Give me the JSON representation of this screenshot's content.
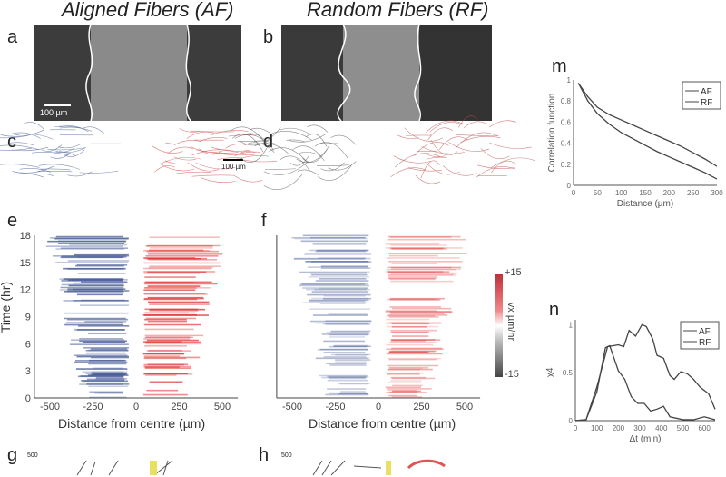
{
  "titles": {
    "af": "Aligned Fibers (AF)",
    "rf": "Random Fibers (RF)"
  },
  "panels": {
    "a": "a",
    "b": "b",
    "c": "c",
    "d": "d",
    "e": "e",
    "f": "f",
    "g": "g",
    "h": "h",
    "m": "m",
    "n": "n"
  },
  "scale_bars": {
    "a": "100 µm",
    "c": "100 µm"
  },
  "kymograph": {
    "ylabel": "Time (hr)",
    "xlabel": "Distance from centre (µm)",
    "yticks": [
      "0",
      "3",
      "6",
      "9",
      "12",
      "15",
      "18"
    ],
    "xticks": [
      "-500",
      "-250",
      "0",
      "250",
      "500"
    ]
  },
  "colorbar": {
    "max": "+15",
    "min": "-15",
    "label": "vx µm/hr",
    "colors": {
      "pos": "#e03a3a",
      "neg": "#4a5a8a"
    }
  },
  "bottom": {
    "g_tick": "500",
    "h_tick": "500"
  },
  "chart_data": [
    {
      "type": "line",
      "panel": "m",
      "xlabel": "Distance (µm)",
      "ylabel": "Correlation function",
      "xlim": [
        0,
        300
      ],
      "ylim": [
        0,
        1
      ],
      "xticks": [
        "0",
        "50",
        "100",
        "150",
        "200",
        "250",
        "300"
      ],
      "yticks": [
        "0",
        "0.2",
        "0.4",
        "0.6",
        "0.8",
        "1"
      ],
      "legend": "top-right",
      "series": [
        {
          "name": "AF",
          "x": [
            10,
            30,
            50,
            75,
            100,
            125,
            150,
            175,
            200,
            225,
            250,
            275,
            300
          ],
          "y": [
            0.97,
            0.84,
            0.74,
            0.67,
            0.62,
            0.57,
            0.52,
            0.47,
            0.42,
            0.37,
            0.31,
            0.25,
            0.18
          ]
        },
        {
          "name": "RF",
          "x": [
            10,
            30,
            50,
            75,
            100,
            125,
            150,
            175,
            200,
            225,
            250,
            275,
            300
          ],
          "y": [
            0.97,
            0.8,
            0.68,
            0.58,
            0.5,
            0.44,
            0.38,
            0.32,
            0.27,
            0.22,
            0.17,
            0.12,
            0.06
          ]
        }
      ]
    },
    {
      "type": "line",
      "panel": "n",
      "xlabel": "Δt (min)",
      "ylabel": "χ4",
      "xlim": [
        0,
        650
      ],
      "ylim": [
        0,
        1.05
      ],
      "xticks": [
        "0",
        "100",
        "200",
        "300",
        "400",
        "500",
        "600"
      ],
      "yticks": [
        "0",
        "0.5",
        "1"
      ],
      "legend": "top-right",
      "series": [
        {
          "name": "AF",
          "x": [
            0,
            50,
            100,
            150,
            200,
            225,
            250,
            280,
            310,
            330,
            360,
            380,
            410,
            440,
            460,
            490,
            520,
            550,
            580,
            620,
            650
          ],
          "y": [
            0,
            0.01,
            0.35,
            0.77,
            0.79,
            0.77,
            0.94,
            0.88,
            1.0,
            0.98,
            0.85,
            0.68,
            0.65,
            0.47,
            0.43,
            0.51,
            0.49,
            0.43,
            0.35,
            0.28,
            0.12
          ]
        },
        {
          "name": "RF",
          "x": [
            0,
            50,
            100,
            140,
            160,
            180,
            200,
            230,
            260,
            290,
            320,
            350,
            380,
            410,
            440,
            500,
            550,
            600,
            650
          ],
          "y": [
            0,
            0.01,
            0.3,
            0.76,
            0.78,
            0.65,
            0.52,
            0.43,
            0.25,
            0.18,
            0.18,
            0.1,
            0.12,
            0.15,
            0.04,
            0.01,
            0.01,
            0.04,
            0.01
          ]
        }
      ]
    }
  ]
}
